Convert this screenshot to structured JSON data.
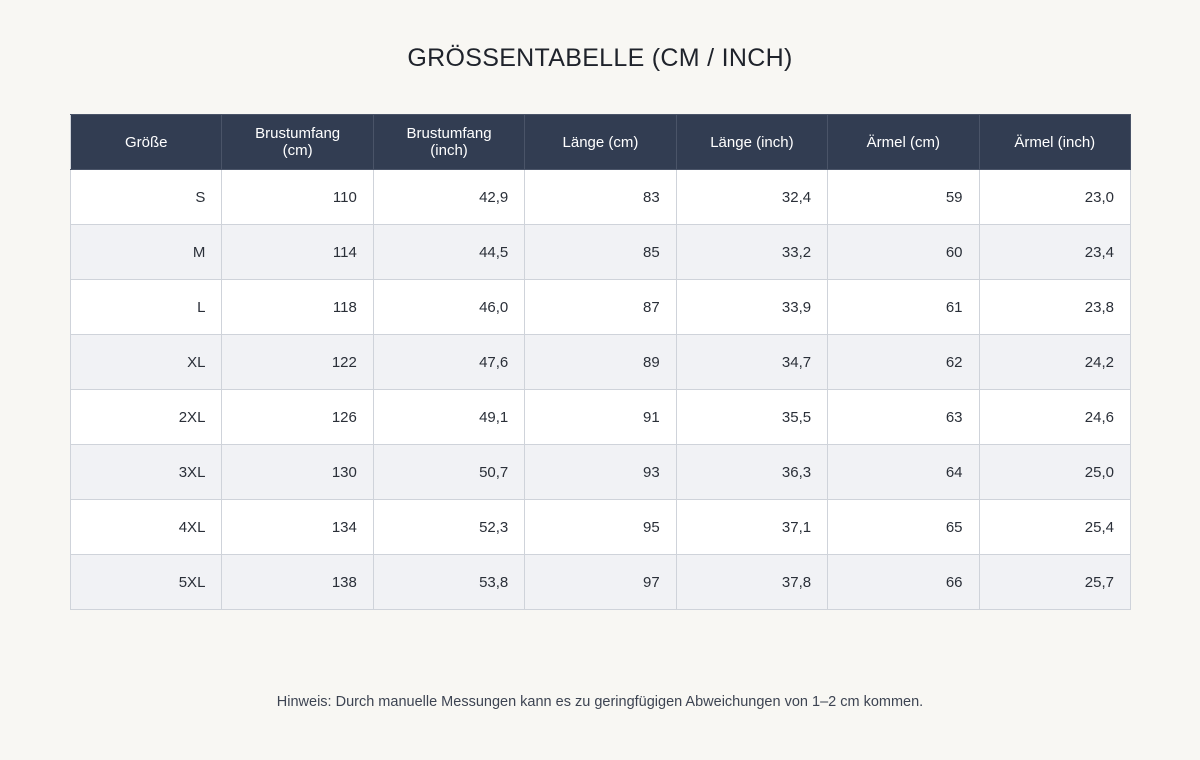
{
  "title": "GRÖSSENTABELLE (CM / INCH)",
  "table": {
    "header": [
      "Größe",
      "Brustumfang (cm)",
      "Brustumfang (inch)",
      "Länge (cm)",
      "Länge (inch)",
      "Ärmel (cm)",
      "Ärmel (inch)"
    ],
    "rows": [
      [
        "S",
        "110",
        "42,9",
        "83",
        "32,4",
        "59",
        "23,0"
      ],
      [
        "M",
        "114",
        "44,5",
        "85",
        "33,2",
        "60",
        "23,4"
      ],
      [
        "L",
        "118",
        "46,0",
        "87",
        "33,9",
        "61",
        "23,8"
      ],
      [
        "XL",
        "122",
        "47,6",
        "89",
        "34,7",
        "62",
        "24,2"
      ],
      [
        "2XL",
        "126",
        "49,1",
        "91",
        "35,5",
        "63",
        "24,6"
      ],
      [
        "3XL",
        "130",
        "50,7",
        "93",
        "36,3",
        "64",
        "25,0"
      ],
      [
        "4XL",
        "134",
        "52,3",
        "95",
        "37,1",
        "65",
        "25,4"
      ],
      [
        "5XL",
        "138",
        "53,8",
        "97",
        "37,8",
        "66",
        "25,7"
      ]
    ]
  },
  "note": "Hinweis: Durch manuelle Messungen kann es zu geringfügigen Abweichungen von 1–2 cm kommen."
}
